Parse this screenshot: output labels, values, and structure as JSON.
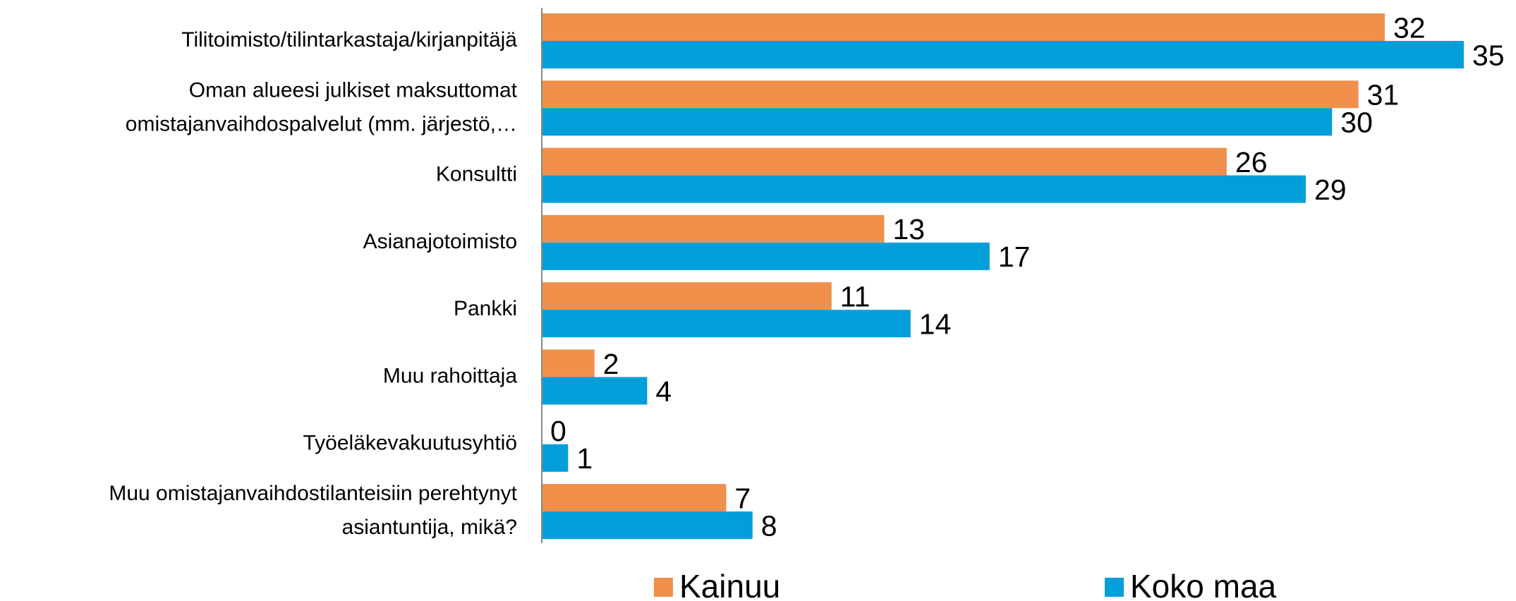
{
  "chart_data": {
    "type": "hbar",
    "categories": [
      "Tilitoimisto/tilintarkastaja/kirjanpitäjä",
      "Oman alueesi julkiset maksuttomat\nomistajanvaihdospalvelut (mm. järjestö,…",
      "Konsultti",
      "Asianajotoimisto",
      "Pankki",
      "Muu rahoittaja",
      "Työeläkevakuutusyhtiö",
      "Muu omistajanvaihdostilanteisiin perehtynyt\nasiantuntija, mikä?"
    ],
    "series": [
      {
        "name": "Kainuu",
        "color": "#f0904a",
        "values": [
          32,
          31,
          26,
          13,
          11,
          2,
          0,
          7
        ]
      },
      {
        "name": "Koko maa",
        "color": "#009fda",
        "values": [
          35,
          30,
          29,
          17,
          14,
          4,
          1,
          8
        ]
      }
    ],
    "legend": "bottom"
  }
}
